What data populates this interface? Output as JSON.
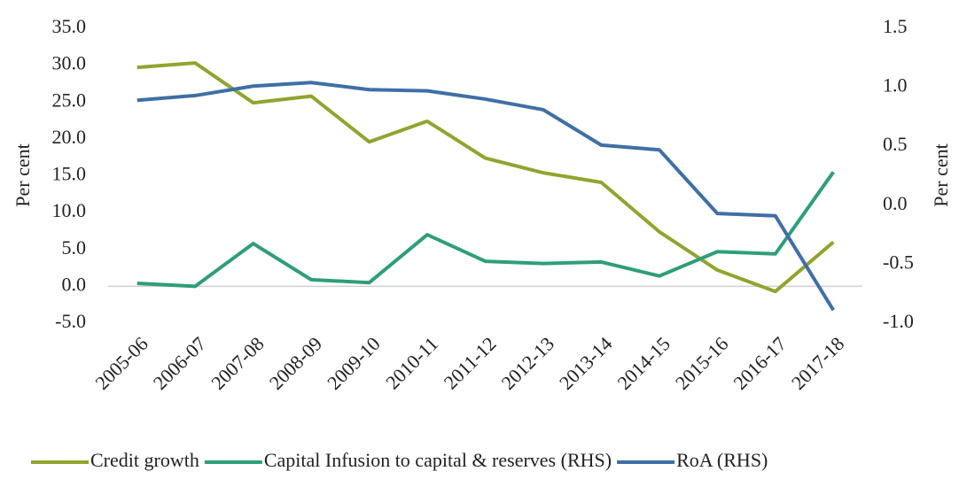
{
  "chart_data": {
    "type": "line",
    "categories": [
      "2005-06",
      "2006-07",
      "2007-08",
      "2008-09",
      "2009-10",
      "2010-11",
      "2011-12",
      "2012-13",
      "2013-14",
      "2014-15",
      "2015-16",
      "2016-17",
      "2017-18"
    ],
    "series": [
      {
        "name": "Credit growth",
        "color": "#8fa52e",
        "values": [
          29.7,
          30.3,
          24.9,
          25.8,
          19.6,
          22.4,
          17.4,
          15.4,
          14.1,
          7.4,
          2.2,
          -0.7,
          6.0
        ]
      },
      {
        "name": "Capital Infusion to capital & reserves (RHS)",
        "color": "#2e9e7a",
        "values": [
          0.4,
          0.0,
          5.8,
          0.9,
          0.5,
          7.0,
          3.4,
          3.1,
          3.3,
          1.4,
          4.7,
          4.4,
          15.5
        ]
      },
      {
        "name": "RoA (RHS)",
        "color": "#3f6fa6",
        "axis": "y2",
        "values": [
          0.89,
          0.93,
          1.01,
          1.04,
          0.98,
          0.97,
          0.9,
          0.81,
          0.51,
          0.47,
          -0.07,
          -0.09,
          -0.89
        ]
      }
    ],
    "ylabel": "Per cent",
    "y2label": "Per cent",
    "ylim": [
      -5,
      35
    ],
    "yticks": [
      {
        "value": -5,
        "label": "-5.0"
      },
      {
        "value": 0,
        "label": "0.0"
      },
      {
        "value": 5,
        "label": "5.0"
      },
      {
        "value": 10,
        "label": "10.0"
      },
      {
        "value": 15,
        "label": "15.0"
      },
      {
        "value": 20,
        "label": "20.0"
      },
      {
        "value": 25,
        "label": "25.0"
      },
      {
        "value": 30,
        "label": "30.0"
      },
      {
        "value": 35,
        "label": "35.0"
      }
    ],
    "y2lim": [
      -1,
      1.5
    ],
    "y2ticks": [
      {
        "value": -1,
        "label": "-1.0"
      },
      {
        "value": -0.5,
        "label": "-0.5"
      },
      {
        "value": 0,
        "label": "0.0"
      },
      {
        "value": 0.5,
        "label": "0.5"
      },
      {
        "value": 1,
        "label": "1.0"
      },
      {
        "value": 1.5,
        "label": "1.5"
      }
    ],
    "grid": false,
    "legend": "bottom"
  }
}
